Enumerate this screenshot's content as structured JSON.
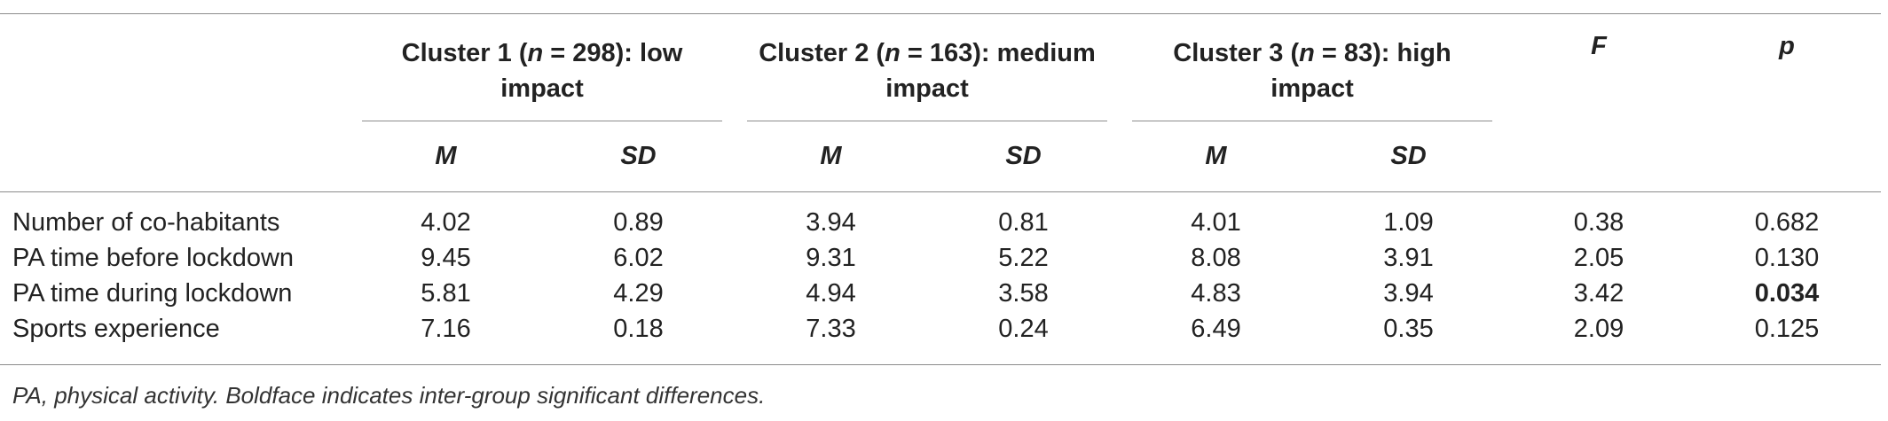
{
  "table": {
    "header": {
      "clusters": [
        {
          "name_prefix": "Cluster 1 (",
          "n_symbol": "n",
          "n_value": " = 298): low",
          "impact": "impact"
        },
        {
          "name_prefix": "Cluster 2 (",
          "n_symbol": "n",
          "n_value": " = 163): medium",
          "impact": "impact"
        },
        {
          "name_prefix": "Cluster 3 (",
          "n_symbol": "n",
          "n_value": " = 83): high",
          "impact": "impact"
        }
      ],
      "f_label": "F",
      "p_label": "p",
      "m_label": "M",
      "sd_label": "SD"
    },
    "rows": [
      {
        "label": "Number of co-habitants",
        "c1_m": "4.02",
        "c1_sd": "0.89",
        "c2_m": "3.94",
        "c2_sd": "0.81",
        "c3_m": "4.01",
        "c3_sd": "1.09",
        "f": "0.38",
        "p": "0.682",
        "p_bold": false
      },
      {
        "label": "PA time before lockdown",
        "c1_m": "9.45",
        "c1_sd": "6.02",
        "c2_m": "9.31",
        "c2_sd": "5.22",
        "c3_m": "8.08",
        "c3_sd": "3.91",
        "f": "2.05",
        "p": "0.130",
        "p_bold": false
      },
      {
        "label": "PA time during lockdown",
        "c1_m": "5.81",
        "c1_sd": "4.29",
        "c2_m": "4.94",
        "c2_sd": "3.58",
        "c3_m": "4.83",
        "c3_sd": "3.94",
        "f": "3.42",
        "p": "0.034",
        "p_bold": true
      },
      {
        "label": "Sports experience",
        "c1_m": "7.16",
        "c1_sd": "0.18",
        "c2_m": "7.33",
        "c2_sd": "0.24",
        "c3_m": "6.49",
        "c3_sd": "0.35",
        "f": "2.09",
        "p": "0.125",
        "p_bold": false
      }
    ]
  },
  "note": "PA, physical activity. Boldface indicates inter-group significant differences."
}
